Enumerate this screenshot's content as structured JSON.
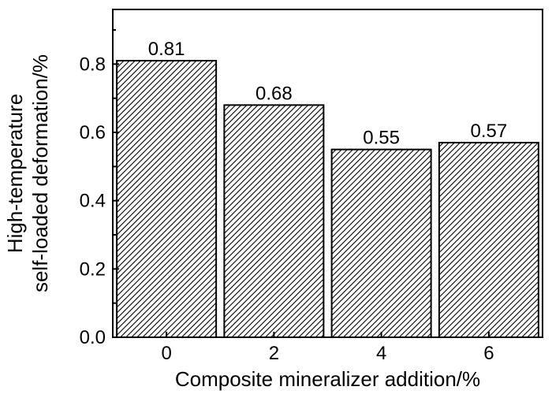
{
  "chart_data": {
    "type": "bar",
    "categories": [
      "0",
      "2",
      "4",
      "6"
    ],
    "values": [
      0.81,
      0.68,
      0.55,
      0.57
    ],
    "data_labels": [
      "0.81",
      "0.68",
      "0.55",
      "0.57"
    ],
    "xlabel": "Composite mineralizer addition/%",
    "ylabel_lines": [
      "High-temperature",
      "self-loaded deformation/%"
    ],
    "ylim": [
      0,
      0.96
    ],
    "yticks": [
      0.0,
      0.2,
      0.4,
      0.6,
      0.8
    ],
    "ytick_labels": [
      "0.0",
      "0.2",
      "0.4",
      "0.6",
      "0.8"
    ],
    "bar_fill": "diagonal hatch",
    "bar_color": "#000000",
    "grid": false,
    "legend": "none"
  }
}
